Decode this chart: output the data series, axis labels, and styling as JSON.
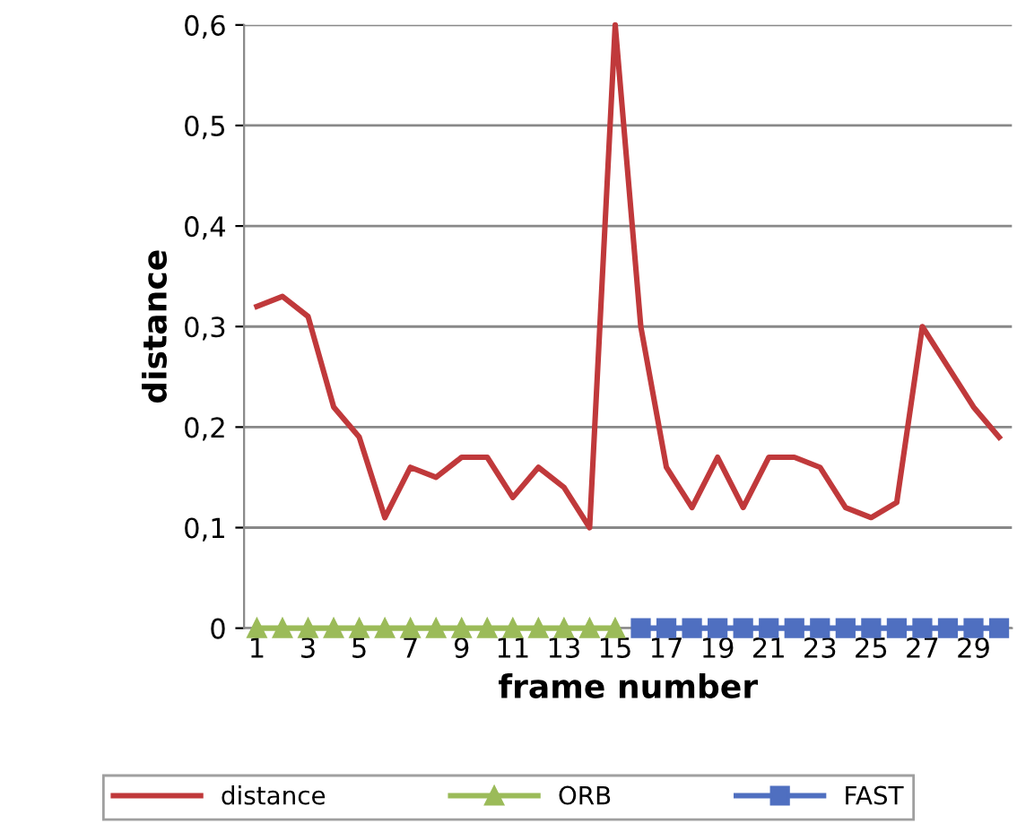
{
  "chart_data": {
    "type": "line",
    "xlabel": "frame number",
    "ylabel": "distance",
    "categories": [
      "1",
      null,
      "3",
      null,
      "5",
      null,
      "7",
      null,
      "9",
      null,
      "11",
      null,
      "13",
      null,
      "15",
      null,
      "17",
      null,
      "19",
      null,
      "21",
      null,
      "23",
      null,
      "25",
      null,
      "27",
      null,
      "29",
      null
    ],
    "series": [
      {
        "name": "distance",
        "color": "#c0393b",
        "marker": "none",
        "values": [
          0.32,
          0.33,
          0.31,
          0.22,
          0.19,
          0.11,
          0.16,
          0.15,
          0.17,
          0.17,
          0.13,
          0.16,
          0.14,
          0.1,
          0.6,
          0.3,
          0.16,
          0.12,
          0.17,
          0.12,
          0.17,
          0.17,
          0.16,
          0.12,
          0.11,
          0.125,
          0.3,
          0.26,
          0.22,
          0.19
        ]
      },
      {
        "name": "ORB",
        "color": "#9bbb59",
        "marker": "triangle",
        "values": [
          0,
          0,
          0,
          0,
          0,
          0,
          0,
          0,
          0,
          0,
          0,
          0,
          0,
          0,
          0,
          null,
          null,
          null,
          null,
          null,
          null,
          null,
          null,
          null,
          null,
          null,
          null,
          null,
          null,
          null
        ]
      },
      {
        "name": "FAST",
        "color": "#4f6fc0",
        "marker": "square",
        "values": [
          null,
          null,
          null,
          null,
          null,
          null,
          null,
          null,
          null,
          null,
          null,
          null,
          null,
          null,
          null,
          0,
          0,
          0,
          0,
          0,
          0,
          0,
          0,
          0,
          0,
          0,
          0,
          0,
          0,
          0
        ]
      }
    ],
    "ylim": [
      0,
      0.6
    ],
    "yticks": [
      {
        "value": 0,
        "label": "0"
      },
      {
        "value": 0.1,
        "label": "0,1"
      },
      {
        "value": 0.2,
        "label": "0,2"
      },
      {
        "value": 0.3,
        "label": "0,3"
      },
      {
        "value": 0.4,
        "label": "0,4"
      },
      {
        "value": 0.5,
        "label": "0,5"
      },
      {
        "value": 0.6,
        "label": "0,6"
      }
    ],
    "grid": "y",
    "legend": "bottom",
    "line_style": "solid"
  }
}
